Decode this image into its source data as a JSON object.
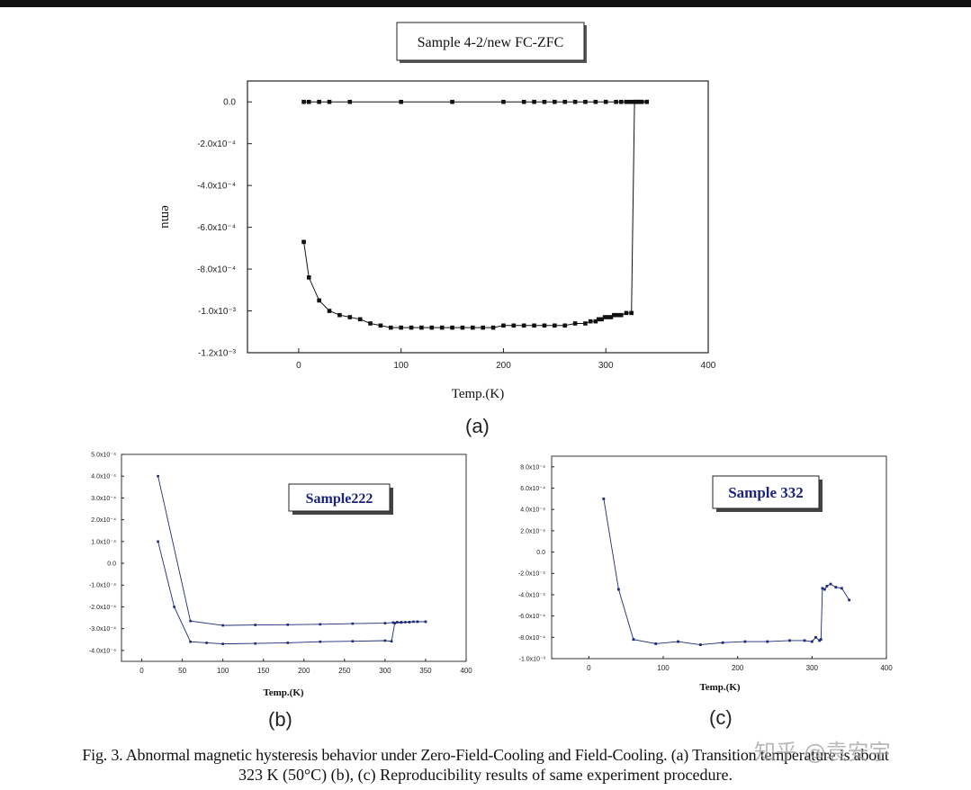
{
  "chart_data": [
    {
      "id": "a",
      "type": "line",
      "title": "Sample 4-2/new FC-ZFC",
      "xlabel": "Temp.(K)",
      "ylabel": "emu",
      "xlim": [
        -50,
        400
      ],
      "ylim": [
        -0.0012,
        0.0001
      ],
      "x_ticks": [
        0,
        100,
        200,
        300,
        400
      ],
      "y_ticks": [
        {
          "value": 0,
          "label": "0.0"
        },
        {
          "value": -0.0002,
          "label": "-2.0x10⁻⁴"
        },
        {
          "value": -0.0004,
          "label": "-4.0x10⁻⁴"
        },
        {
          "value": -0.0006,
          "label": "-6.0x10⁻⁴"
        },
        {
          "value": -0.0008,
          "label": "-8.0x10⁻⁴"
        },
        {
          "value": -0.001,
          "label": "-1.0x10⁻³"
        },
        {
          "value": -0.0012,
          "label": "-1.2x10⁻³"
        }
      ],
      "grid": false,
      "series": [
        {
          "points": [
            [
              5,
              -0.00067
            ],
            [
              10,
              -0.00084
            ],
            [
              20,
              -0.00095
            ],
            [
              30,
              -0.001
            ],
            [
              40,
              -0.00102
            ],
            [
              50,
              -0.00103
            ],
            [
              60,
              -0.00104
            ],
            [
              70,
              -0.00106
            ],
            [
              80,
              -0.00107
            ],
            [
              90,
              -0.00108
            ],
            [
              100,
              -0.00108
            ],
            [
              110,
              -0.00108
            ],
            [
              120,
              -0.00108
            ],
            [
              130,
              -0.00108
            ],
            [
              140,
              -0.00108
            ],
            [
              150,
              -0.00108
            ],
            [
              160,
              -0.00108
            ],
            [
              170,
              -0.00108
            ],
            [
              180,
              -0.00108
            ],
            [
              190,
              -0.00108
            ],
            [
              200,
              -0.00107
            ],
            [
              210,
              -0.00107
            ],
            [
              220,
              -0.00107
            ],
            [
              230,
              -0.00107
            ],
            [
              240,
              -0.00107
            ],
            [
              250,
              -0.00107
            ],
            [
              260,
              -0.00107
            ],
            [
              270,
              -0.00106
            ],
            [
              280,
              -0.00106
            ],
            [
              285,
              -0.00105
            ],
            [
              290,
              -0.00105
            ],
            [
              293,
              -0.00104
            ],
            [
              296,
              -0.00104
            ],
            [
              299,
              -0.00103
            ],
            [
              302,
              -0.00103
            ],
            [
              305,
              -0.00103
            ],
            [
              308,
              -0.00102
            ],
            [
              311,
              -0.00102
            ],
            [
              315,
              -0.00102
            ],
            [
              320,
              -0.00101
            ],
            [
              325,
              -0.00101
            ],
            [
              328,
              0
            ],
            [
              330,
              0
            ],
            [
              332,
              0
            ],
            [
              335,
              0
            ],
            [
              340,
              0
            ]
          ]
        },
        {
          "points": [
            [
              5,
              0
            ],
            [
              10,
              0
            ],
            [
              20,
              0
            ],
            [
              30,
              0
            ],
            [
              50,
              0
            ],
            [
              100,
              0
            ],
            [
              150,
              0
            ],
            [
              200,
              0
            ],
            [
              220,
              0
            ],
            [
              230,
              0
            ],
            [
              240,
              0
            ],
            [
              250,
              0
            ],
            [
              260,
              0
            ],
            [
              270,
              0
            ],
            [
              280,
              0
            ],
            [
              290,
              0
            ],
            [
              300,
              0
            ],
            [
              310,
              0
            ],
            [
              315,
              0
            ],
            [
              320,
              0
            ],
            [
              323,
              0
            ],
            [
              326,
              0
            ],
            [
              329,
              0
            ],
            [
              332,
              0
            ],
            [
              335,
              0
            ],
            [
              340,
              0
            ]
          ]
        }
      ],
      "panel_label": "(a)"
    },
    {
      "id": "b",
      "type": "line",
      "title": "Sample222",
      "xlabel": "Temp.(K)",
      "ylabel": "",
      "xlim": [
        -25,
        400
      ],
      "ylim": [
        -0.00045,
        0.0005
      ],
      "x_ticks": [
        0,
        50,
        100,
        150,
        200,
        250,
        300,
        350,
        400
      ],
      "y_ticks": [
        {
          "value": 0.0005,
          "label": "5.0x10⁻⁴"
        },
        {
          "value": 0.0004,
          "label": "4.0x10⁻⁴"
        },
        {
          "value": 0.0003,
          "label": "3.0x10⁻⁴"
        },
        {
          "value": 0.0002,
          "label": "2.0x10⁻⁴"
        },
        {
          "value": 0.0001,
          "label": "1.0x10⁻⁴"
        },
        {
          "value": 0,
          "label": "0.0"
        },
        {
          "value": -0.0001,
          "label": "-1.0x10⁻⁴"
        },
        {
          "value": -0.0002,
          "label": "-2.0x10⁻⁴"
        },
        {
          "value": -0.0003,
          "label": "-3.0x10⁻⁴"
        },
        {
          "value": -0.0004,
          "label": "-4.0x10⁻⁴"
        }
      ],
      "grid": false,
      "series": [
        {
          "points": [
            [
              20,
              0.0004
            ],
            [
              60,
              -0.000265
            ],
            [
              100,
              -0.000285
            ],
            [
              140,
              -0.000283
            ],
            [
              180,
              -0.000282
            ],
            [
              220,
              -0.00028
            ],
            [
              260,
              -0.000277
            ],
            [
              300,
              -0.000275
            ],
            [
              310,
              -0.000272
            ],
            [
              315,
              -0.00027
            ],
            [
              320,
              -0.00027
            ],
            [
              325,
              -0.00027
            ],
            [
              330,
              -0.00027
            ],
            [
              335,
              -0.000268
            ],
            [
              340,
              -0.000268
            ],
            [
              350,
              -0.000268
            ]
          ]
        },
        {
          "points": [
            [
              20,
              0.0001
            ],
            [
              40,
              -0.0002
            ],
            [
              60,
              -0.00036
            ],
            [
              80,
              -0.000365
            ],
            [
              100,
              -0.00037
            ],
            [
              140,
              -0.000368
            ],
            [
              180,
              -0.000365
            ],
            [
              220,
              -0.00036
            ],
            [
              260,
              -0.000358
            ],
            [
              300,
              -0.000355
            ],
            [
              308,
              -0.000358
            ],
            [
              312,
              -0.000275
            ],
            [
              320,
              -0.000272
            ],
            [
              330,
              -0.00027
            ],
            [
              340,
              -0.000268
            ],
            [
              350,
              -0.000268
            ]
          ]
        }
      ],
      "panel_label": "(b)"
    },
    {
      "id": "c",
      "type": "line",
      "title": "Sample 332",
      "xlabel": "Temp.(K)",
      "ylabel": "",
      "xlim": [
        -50,
        400
      ],
      "ylim": [
        -0.001,
        0.0009
      ],
      "x_ticks": [
        0,
        100,
        200,
        300,
        400
      ],
      "y_ticks": [
        {
          "value": 0.0008,
          "label": "8.0x10⁻⁴"
        },
        {
          "value": 0.0006,
          "label": "6.0x10⁻⁴"
        },
        {
          "value": 0.0004,
          "label": "4.0x10⁻⁴"
        },
        {
          "value": 0.0002,
          "label": "2.0x10⁻⁴"
        },
        {
          "value": 0,
          "label": "0.0"
        },
        {
          "value": -0.0002,
          "label": "-2.0x10⁻⁴"
        },
        {
          "value": -0.0004,
          "label": "-4.0x10⁻⁴"
        },
        {
          "value": -0.0006,
          "label": "-6.0x10⁻⁴"
        },
        {
          "value": -0.0008,
          "label": "-8.0x10⁻⁴"
        },
        {
          "value": -0.001,
          "label": "-1.0x10⁻³"
        }
      ],
      "grid": false,
      "series": [
        {
          "points": [
            [
              20,
              0.0005
            ],
            [
              40,
              -0.00035
            ],
            [
              60,
              -0.00082
            ],
            [
              90,
              -0.00086
            ],
            [
              120,
              -0.00084
            ],
            [
              150,
              -0.00087
            ],
            [
              180,
              -0.00085
            ],
            [
              210,
              -0.00084
            ],
            [
              240,
              -0.00084
            ],
            [
              270,
              -0.00083
            ],
            [
              290,
              -0.00083
            ],
            [
              300,
              -0.00084
            ],
            [
              305,
              -0.0008
            ],
            [
              310,
              -0.00083
            ],
            [
              312,
              -0.00082
            ],
            [
              314,
              -0.00034
            ],
            [
              317,
              -0.00035
            ],
            [
              320,
              -0.00032
            ],
            [
              325,
              -0.0003
            ],
            [
              332,
              -0.00033
            ],
            [
              340,
              -0.00034
            ],
            [
              350,
              -0.00045
            ]
          ]
        }
      ],
      "panel_label": "(c)"
    }
  ],
  "caption": {
    "line1": "Fig. 3. Abnormal magnetic hysteresis behavior under Zero-Field-Cooling and Field-Cooling. (a) Transition temperature is about",
    "line2": "323 K (50°C) (b), (c) Reproducibility results of same experiment procedure."
  },
  "watermark": "知乎 @袁安宇",
  "colors": {
    "series_black": "#111111",
    "series_navy": "#1c2a78",
    "title_navy": "#1a237e"
  }
}
